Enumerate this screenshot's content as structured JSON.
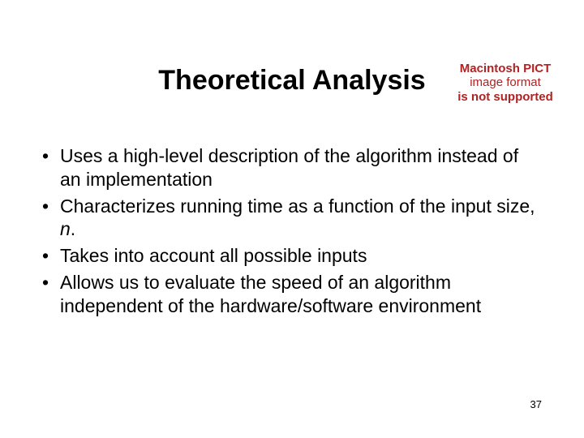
{
  "title": "Theoretical Analysis",
  "errorBadge": {
    "line1": "Macintosh PICT",
    "line2": "image format",
    "line3": "is not supported"
  },
  "bullets": [
    "Uses a high-level description of the algorithm instead of an implementation",
    "Characterizes running time as a function of the input size, ",
    "Takes into account all possible inputs",
    "Allows us to evaluate the speed of an algorithm independent of the hardware/software environment"
  ],
  "inputVar": "n",
  "pageNumber": "37",
  "colors": {
    "background": "#ffffff",
    "text": "#000000",
    "errorText": "#b22222"
  },
  "typography": {
    "title_fontsize": 34,
    "body_fontsize": 23,
    "pagenum_fontsize": 13
  }
}
